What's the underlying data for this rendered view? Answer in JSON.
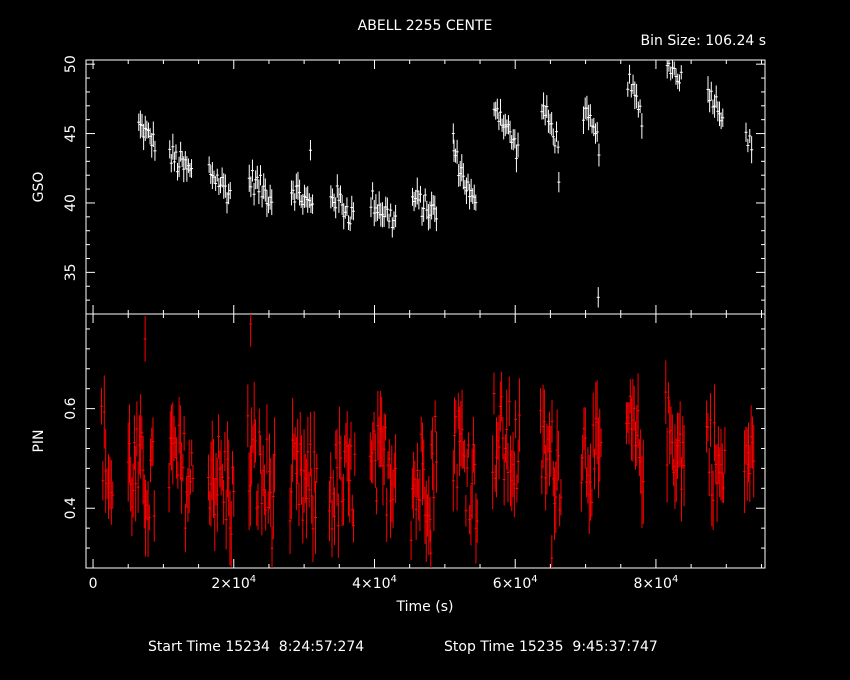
{
  "chart_data": {
    "type": "scatter",
    "title": "ABELL 2255 CENTE",
    "bin_size": "Bin Size: 106.24 s",
    "xlabel": "Time (s)",
    "xlim": [
      -1000,
      95500
    ],
    "x_ticks": [
      {
        "value": 0,
        "mantissa": "0",
        "exp": ""
      },
      {
        "value": 20000,
        "mantissa": "2×10",
        "exp": "4"
      },
      {
        "value": 40000,
        "mantissa": "4×10",
        "exp": "4"
      },
      {
        "value": 60000,
        "mantissa": "6×10",
        "exp": "4"
      },
      {
        "value": 80000,
        "mantissa": "8×10",
        "exp": "4"
      }
    ],
    "footer": {
      "start": "Start Time 15234  8:24:57:274",
      "stop": "Stop Time 15235  9:45:37:747"
    },
    "panels": [
      {
        "name": "GSO",
        "ylabel": "GSO",
        "color": "#ffffff",
        "ylim": [
          32.0,
          50.3
        ],
        "y_ticks": [
          35,
          40,
          45,
          50
        ],
        "segments": [
          {
            "t0": 6500,
            "t1": 8800,
            "y0": 45.6,
            "y1": 44.3,
            "spread": 0.7
          },
          {
            "t0": 10900,
            "t1": 14000,
            "y0": 43.4,
            "y1": 42.1,
            "spread": 1.0
          },
          {
            "t0": 16500,
            "t1": 19500,
            "y0": 42.4,
            "y1": 40.6,
            "spread": 0.9
          },
          {
            "t0": 22200,
            "t1": 25400,
            "y0": 41.8,
            "y1": 40.4,
            "spread": 0.9
          },
          {
            "t0": 28200,
            "t1": 31200,
            "y0": 41.2,
            "y1": 39.6,
            "spread": 0.9
          },
          {
            "t0": 33800,
            "t1": 37000,
            "y0": 40.8,
            "y1": 39.0,
            "spread": 1.0
          },
          {
            "t0": 39500,
            "t1": 43000,
            "y0": 40.2,
            "y1": 38.7,
            "spread": 0.9
          },
          {
            "t0": 45400,
            "t1": 48800,
            "y0": 40.3,
            "y1": 39.2,
            "spread": 0.9
          },
          {
            "t0": 51300,
            "t1": 54400,
            "y0": 43.6,
            "y1": 39.6,
            "spread": 0.8
          },
          {
            "t0": 57000,
            "t1": 60400,
            "y0": 47.3,
            "y1": 43.7,
            "spread": 0.8
          },
          {
            "t0": 63800,
            "t1": 66100,
            "y0": 47.0,
            "y1": 44.3,
            "spread": 0.8
          },
          {
            "t0": 69700,
            "t1": 71900,
            "y0": 46.6,
            "y1": 44.2,
            "spread": 0.8
          },
          {
            "t0": 76000,
            "t1": 78000,
            "y0": 48.8,
            "y1": 46.3,
            "spread": 0.8
          },
          {
            "t0": 81600,
            "t1": 83600,
            "y0": 50.0,
            "y1": 49.0,
            "spread": 0.6
          },
          {
            "t0": 87400,
            "t1": 89500,
            "y0": 48.2,
            "y1": 46.4,
            "spread": 0.7
          },
          {
            "t0": 92800,
            "t1": 93600,
            "y0": 45.2,
            "y1": 43.8,
            "spread": 0.7
          }
        ],
        "outliers": [
          {
            "x": 71800,
            "y": 33.2
          },
          {
            "x": 30900,
            "y": 43.8
          },
          {
            "x": 66200,
            "y": 41.5
          },
          {
            "x": 51200,
            "y": 45.0
          }
        ]
      },
      {
        "name": "PIN",
        "ylabel": "PIN",
        "color": "#ff0000",
        "ylim": [
          0.28,
          0.79
        ],
        "y_ticks": [
          0.4,
          0.6
        ],
        "segments": [
          {
            "t0": 1200,
            "t1": 2800,
            "y0": 0.55,
            "y1": 0.42,
            "spread": 0.09
          },
          {
            "t0": 5000,
            "t1": 8700,
            "y0": 0.48,
            "y1": 0.44,
            "spread": 0.1
          },
          {
            "t0": 10800,
            "t1": 14200,
            "y0": 0.5,
            "y1": 0.44,
            "spread": 0.1
          },
          {
            "t0": 16400,
            "t1": 20000,
            "y0": 0.49,
            "y1": 0.42,
            "spread": 0.1
          },
          {
            "t0": 22000,
            "t1": 25800,
            "y0": 0.5,
            "y1": 0.42,
            "spread": 0.11
          },
          {
            "t0": 28000,
            "t1": 31800,
            "y0": 0.44,
            "y1": 0.43,
            "spread": 0.1
          },
          {
            "t0": 33600,
            "t1": 37200,
            "y0": 0.44,
            "y1": 0.45,
            "spread": 0.1
          },
          {
            "t0": 39400,
            "t1": 43000,
            "y0": 0.46,
            "y1": 0.5,
            "spread": 0.1
          },
          {
            "t0": 45200,
            "t1": 48800,
            "y0": 0.44,
            "y1": 0.5,
            "spread": 0.11
          },
          {
            "t0": 51200,
            "t1": 54600,
            "y0": 0.55,
            "y1": 0.44,
            "spread": 0.1
          },
          {
            "t0": 56800,
            "t1": 60600,
            "y0": 0.55,
            "y1": 0.5,
            "spread": 0.1
          },
          {
            "t0": 63600,
            "t1": 66500,
            "y0": 0.52,
            "y1": 0.48,
            "spread": 0.09
          },
          {
            "t0": 69400,
            "t1": 72200,
            "y0": 0.52,
            "y1": 0.48,
            "spread": 0.09
          },
          {
            "t0": 75800,
            "t1": 78200,
            "y0": 0.57,
            "y1": 0.5,
            "spread": 0.08
          },
          {
            "t0": 81400,
            "t1": 84000,
            "y0": 0.56,
            "y1": 0.5,
            "spread": 0.08
          },
          {
            "t0": 87200,
            "t1": 89800,
            "y0": 0.54,
            "y1": 0.44,
            "spread": 0.09
          },
          {
            "t0": 92600,
            "t1": 93900,
            "y0": 0.52,
            "y1": 0.48,
            "spread": 0.08
          }
        ],
        "outliers": [
          {
            "x": 22400,
            "y": 0.77
          },
          {
            "x": 7400,
            "y": 0.74
          },
          {
            "x": 48000,
            "y": 0.31
          },
          {
            "x": 65200,
            "y": 0.3
          }
        ]
      }
    ]
  }
}
